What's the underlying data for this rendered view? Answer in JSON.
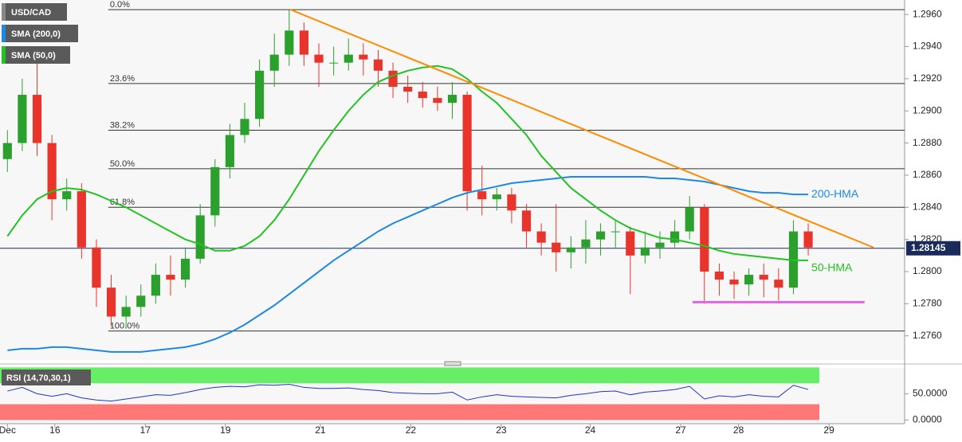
{
  "chart_data": [
    {
      "type": "candlestick",
      "title": "USD/CAD",
      "open": [
        1.287,
        1.288,
        1.291,
        1.288,
        1.2845,
        1.285,
        1.2815,
        1.279,
        1.2772,
        1.2778,
        1.2785,
        1.2798,
        1.2795,
        1.2808,
        1.2835,
        1.2865,
        1.2885,
        1.2895,
        1.2925,
        1.2935,
        1.295,
        1.2935,
        1.293,
        1.293,
        1.2935,
        1.2932,
        1.2925,
        1.2915,
        1.2912,
        1.2908,
        1.2905,
        1.291,
        1.285,
        1.2845,
        1.2848,
        1.2838,
        1.2825,
        1.2818,
        1.2812,
        1.2815,
        1.282,
        1.2825,
        1.2825,
        1.281,
        1.2815,
        1.2818,
        1.2825,
        1.284,
        1.28,
        1.2795,
        1.2792,
        1.2798,
        1.2795,
        1.279,
        1.2825
      ],
      "high": [
        1.2888,
        1.292,
        1.2935,
        1.2885,
        1.2858,
        1.2855,
        1.282,
        1.2798,
        1.2785,
        1.2792,
        1.2805,
        1.281,
        1.2815,
        1.2842,
        1.287,
        1.2892,
        1.2905,
        1.2932,
        1.2948,
        1.2963,
        1.2955,
        1.2942,
        1.294,
        1.2945,
        1.2942,
        1.2938,
        1.293,
        1.2922,
        1.2918,
        1.2915,
        1.2918,
        1.2912,
        1.2866,
        1.2852,
        1.2852,
        1.2842,
        1.283,
        1.2842,
        1.2822,
        1.2832,
        1.283,
        1.2832,
        1.2828,
        1.2825,
        1.2825,
        1.2832,
        1.2847,
        1.2842,
        1.2805,
        1.28,
        1.2802,
        1.2805,
        1.2802,
        1.2832,
        1.283
      ],
      "low": [
        1.2862,
        1.2875,
        1.2872,
        1.2832,
        1.2838,
        1.2808,
        1.2778,
        1.2766,
        1.2765,
        1.2772,
        1.278,
        1.2785,
        1.279,
        1.2805,
        1.2828,
        1.2858,
        1.288,
        1.289,
        1.2915,
        1.2928,
        1.2928,
        1.2915,
        1.2922,
        1.2925,
        1.2922,
        1.2915,
        1.2908,
        1.2905,
        1.2902,
        1.29,
        1.2895,
        1.2838,
        1.2835,
        1.2838,
        1.283,
        1.2815,
        1.281,
        1.28,
        1.2802,
        1.2805,
        1.281,
        1.2815,
        1.2786,
        1.2805,
        1.2808,
        1.2815,
        1.282,
        1.278,
        1.2785,
        1.2783,
        1.2785,
        1.2784,
        1.2782,
        1.2786,
        1.281
      ],
      "close": [
        1.288,
        1.291,
        1.288,
        1.2845,
        1.285,
        1.2815,
        1.279,
        1.2772,
        1.2778,
        1.2785,
        1.2798,
        1.2795,
        1.2808,
        1.2835,
        1.2865,
        1.2885,
        1.2895,
        1.2925,
        1.2935,
        1.295,
        1.2935,
        1.293,
        1.293,
        1.2935,
        1.2932,
        1.2925,
        1.2915,
        1.2912,
        1.2908,
        1.2905,
        1.291,
        1.285,
        1.2845,
        1.2848,
        1.2838,
        1.2825,
        1.2818,
        1.2812,
        1.2815,
        1.282,
        1.2825,
        1.2825,
        1.281,
        1.2815,
        1.2818,
        1.2825,
        1.284,
        1.28,
        1.2795,
        1.2792,
        1.2798,
        1.2795,
        1.279,
        1.2825,
        1.2815
      ],
      "up_color": "#2ca02c",
      "down_color": "#e8342b",
      "series": [
        {
          "name": "SMA (200,0)",
          "annotation": "200-HMA",
          "color": "#1e88e5",
          "values": [
            1.2751,
            1.2752,
            1.2752,
            1.2753,
            1.2753,
            1.2752,
            1.2751,
            1.275,
            1.275,
            1.275,
            1.2751,
            1.2752,
            1.2753,
            1.2755,
            1.2758,
            1.2762,
            1.2767,
            1.2773,
            1.2779,
            1.2786,
            1.2793,
            1.28,
            1.2807,
            1.2813,
            1.2819,
            1.2825,
            1.283,
            1.2834,
            1.2838,
            1.2842,
            1.2846,
            1.2849,
            1.2851,
            1.2853,
            1.2855,
            1.2856,
            1.2857,
            1.2858,
            1.2859,
            1.2859,
            1.2859,
            1.2859,
            1.2859,
            1.2859,
            1.2858,
            1.2858,
            1.2857,
            1.2856,
            1.2854,
            1.2852,
            1.285,
            1.2849,
            1.2849,
            1.2848,
            1.2848
          ]
        },
        {
          "name": "SMA (50,0)",
          "annotation": "50-HMA",
          "color": "#22c322",
          "values": [
            1.2822,
            1.2835,
            1.2845,
            1.285,
            1.2852,
            1.2851,
            1.2848,
            1.2844,
            1.284,
            1.2835,
            1.283,
            1.2825,
            1.282,
            1.2817,
            1.2813,
            1.2813,
            1.2816,
            1.2822,
            1.2832,
            1.2845,
            1.286,
            1.2875,
            1.2888,
            1.29,
            1.291,
            1.2918,
            1.2922,
            1.2925,
            1.2927,
            1.2928,
            1.2926,
            1.292,
            1.2912,
            1.2905,
            1.2895,
            1.2885,
            1.2872,
            1.2862,
            1.2852,
            1.2845,
            1.2838,
            1.2832,
            1.2827,
            1.2824,
            1.2821,
            1.282,
            1.2818,
            1.2816,
            1.2813,
            1.2811,
            1.281,
            1.2809,
            1.2808,
            1.2807,
            1.2807
          ]
        }
      ],
      "fib_levels": [
        {
          "label": "0.0%",
          "value": 1.2963
        },
        {
          "label": "23.6%",
          "value": 1.2917
        },
        {
          "label": "38.2%",
          "value": 1.2888
        },
        {
          "label": "50.0%",
          "value": 1.2864
        },
        {
          "label": "61.8%",
          "value": 1.284
        },
        {
          "label": "100.0%",
          "value": 1.2763
        }
      ],
      "fib_start_x": 6.8,
      "trendline": {
        "color": "#ff8c00",
        "x": [
          19.1,
          58.4
        ],
        "y": [
          1.2963,
          1.2815
        ]
      },
      "support": {
        "color": "#e066e0",
        "x": [
          46.2,
          57.8
        ],
        "y": [
          1.2781,
          1.2781
        ]
      },
      "last_price": {
        "value": 1.28145,
        "label": "1.28145"
      },
      "xlim": [
        -0.5,
        60.5
      ],
      "xticks": [
        {
          "value": 0,
          "label": "Dec"
        },
        {
          "value": 3.2,
          "label": "16"
        },
        {
          "value": 9.3,
          "label": "17"
        },
        {
          "value": 14.7,
          "label": "19"
        },
        {
          "value": 21.1,
          "label": "21"
        },
        {
          "value": 27.2,
          "label": "22"
        },
        {
          "value": 33.3,
          "label": "23"
        },
        {
          "value": 39.3,
          "label": "24"
        },
        {
          "value": 45.4,
          "label": "27"
        },
        {
          "value": 49.3,
          "label": "28"
        },
        {
          "value": 55.4,
          "label": "29"
        }
      ],
      "ylim": [
        1.2745,
        1.2969
      ],
      "yticks": [
        {
          "value": 1.276,
          "label": "1.2760"
        },
        {
          "value": 1.278,
          "label": "1.2780"
        },
        {
          "value": 1.28,
          "label": "1.2800"
        },
        {
          "value": 1.282,
          "label": "1.2820"
        },
        {
          "value": 1.284,
          "label": "1.2840"
        },
        {
          "value": 1.286,
          "label": "1.2860"
        },
        {
          "value": 1.288,
          "label": "1.2880"
        },
        {
          "value": 1.29,
          "label": "1.2900"
        },
        {
          "value": 1.292,
          "label": "1.2920"
        },
        {
          "value": 1.294,
          "label": "1.2940"
        },
        {
          "value": 1.296,
          "label": "1.2960"
        }
      ]
    },
    {
      "type": "line",
      "title": "RSI (14,70,30,1)",
      "color": "#2233cc",
      "values": [
        55,
        62,
        50,
        45,
        50,
        42,
        38,
        36,
        40,
        44,
        48,
        47,
        52,
        58,
        62,
        64,
        63,
        67,
        66,
        68,
        62,
        60,
        60,
        61,
        58,
        56,
        52,
        51,
        50,
        50,
        53,
        38,
        44,
        48,
        45,
        44,
        43,
        42,
        47,
        50,
        54,
        55,
        48,
        53,
        55,
        58,
        64,
        40,
        46,
        44,
        48,
        45,
        44,
        66,
        58
      ],
      "overbought": 70,
      "oversold": 30,
      "top": 100,
      "bottom": 0,
      "overbought_color": "#66ee66",
      "oversold_color": "#ff7777",
      "xlim": [
        -0.5,
        60.5
      ],
      "ylim": [
        -7,
        99
      ],
      "yticks": [
        {
          "value": 50,
          "label": "50.0000"
        },
        {
          "value": 0,
          "label": "0.0000"
        }
      ]
    }
  ]
}
